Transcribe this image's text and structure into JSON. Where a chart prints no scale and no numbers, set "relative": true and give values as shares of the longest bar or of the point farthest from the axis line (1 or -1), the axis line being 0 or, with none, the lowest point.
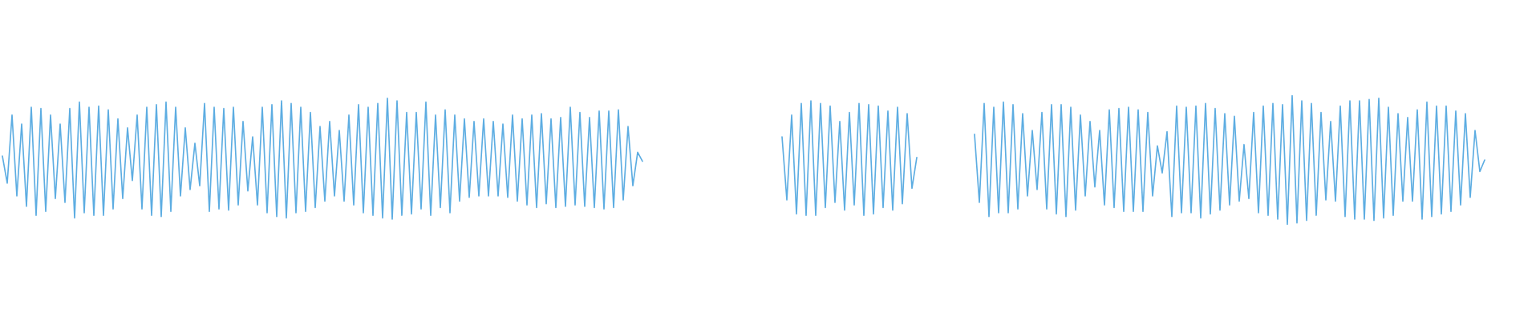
{
  "chart_data": {
    "type": "line",
    "relative": true,
    "categories": [
      null,
      null,
      null,
      null,
      null,
      null,
      null,
      null,
      null,
      null,
      null,
      null,
      null,
      null,
      null,
      null,
      null,
      null,
      null,
      null,
      null,
      null,
      null,
      null,
      null,
      null,
      null,
      null,
      null,
      null,
      null,
      null,
      null,
      null,
      null,
      null,
      null,
      null,
      null,
      null,
      null,
      null,
      null,
      null,
      null,
      null,
      null,
      null,
      null,
      null,
      null,
      null,
      null,
      null,
      null,
      null,
      null,
      null,
      null,
      null,
      null,
      null,
      null,
      null,
      null,
      null,
      null,
      null,
      null,
      null,
      null,
      null,
      null,
      null,
      null,
      null,
      null,
      null,
      null,
      null,
      null,
      null,
      null,
      null,
      null,
      null,
      null,
      null,
      null,
      null,
      null,
      null,
      null,
      null,
      null,
      null,
      null,
      null,
      null,
      null,
      null,
      null,
      null,
      null,
      null,
      null,
      null,
      null,
      null,
      null,
      null,
      null,
      null,
      null,
      null,
      null,
      null,
      null,
      null,
      null,
      null,
      null,
      null,
      null,
      null,
      null,
      null,
      null,
      null,
      null,
      null,
      null,
      null,
      null,
      null,
      null,
      null,
      null,
      null,
      null,
      null,
      null,
      null,
      null,
      null,
      null,
      null,
      null,
      null,
      null,
      null,
      null,
      null,
      null,
      null,
      null,
      null,
      null,
      null,
      null,
      null,
      null,
      null,
      null,
      null,
      null,
      null,
      null,
      null,
      null,
      null,
      null,
      null,
      null,
      null,
      null,
      null,
      null,
      null,
      null,
      null,
      null,
      null,
      null,
      null,
      null,
      null,
      null,
      null,
      null,
      null,
      null,
      null,
      null,
      null,
      null,
      null,
      null,
      null,
      null,
      null,
      null,
      null,
      null,
      null,
      null,
      null,
      null,
      null,
      null,
      null,
      null,
      null,
      null,
      null,
      null,
      null,
      null,
      null,
      null,
      null,
      null,
      null,
      null,
      null,
      null,
      null,
      null,
      null,
      null,
      null,
      null,
      null,
      null,
      null,
      null,
      null,
      null,
      null,
      null,
      null,
      null,
      null,
      null,
      null,
      null,
      null,
      null,
      null,
      null,
      null,
      null,
      null,
      null,
      null,
      null,
      null,
      null,
      null,
      null,
      null,
      null,
      null,
      null,
      null,
      null,
      null,
      null,
      null,
      null,
      null,
      null,
      null,
      null,
      null,
      null,
      null,
      null,
      null,
      null,
      null,
      null,
      null,
      null,
      null,
      null,
      null,
      null,
      null,
      null,
      null,
      null,
      null,
      null,
      null,
      null,
      null,
      null,
      null,
      null,
      null,
      null,
      null,
      null,
      null,
      null,
      null,
      null,
      null
    ],
    "series": [
      {
        "color": "#5dade2",
        "values": [
          0.53,
          0.32,
          0.85,
          0.22,
          0.78,
          0.14,
          0.91,
          0.07,
          0.9,
          0.1,
          0.85,
          0.2,
          0.78,
          0.17,
          0.9,
          0.05,
          0.95,
          0.09,
          0.91,
          0.07,
          0.92,
          0.07,
          0.89,
          0.12,
          0.82,
          0.2,
          0.75,
          0.34,
          0.85,
          0.12,
          0.91,
          0.07,
          0.93,
          0.06,
          0.95,
          0.1,
          0.91,
          0.22,
          0.75,
          0.27,
          0.63,
          0.3,
          0.94,
          0.1,
          0.91,
          0.12,
          0.9,
          0.11,
          0.91,
          0.15,
          0.8,
          0.26,
          0.68,
          0.15,
          0.91,
          0.09,
          0.93,
          0.06,
          0.96,
          0.05,
          0.94,
          0.09,
          0.91,
          0.1,
          0.87,
          0.13,
          0.76,
          0.18,
          0.8,
          0.22,
          0.73,
          0.18,
          0.85,
          0.15,
          0.93,
          0.09,
          0.91,
          0.07,
          0.94,
          0.05,
          0.98,
          0.04,
          0.96,
          0.07,
          0.87,
          0.08,
          0.87,
          0.12,
          0.95,
          0.07,
          0.85,
          0.13,
          0.89,
          0.09,
          0.85,
          0.18,
          0.82,
          0.21,
          0.8,
          0.22,
          0.82,
          0.22,
          0.8,
          0.22,
          0.78,
          0.21,
          0.85,
          0.18,
          0.82,
          0.15,
          0.85,
          0.13,
          0.86,
          0.16,
          0.82,
          0.13,
          0.83,
          0.14,
          0.91,
          0.15,
          0.87,
          0.14,
          0.83,
          0.13,
          0.88,
          0.12,
          0.88,
          0.13,
          0.89,
          0.19,
          0.76,
          0.3,
          0.56,
          0.49,
          null,
          null,
          null,
          null,
          null,
          null,
          null,
          null,
          null,
          null,
          null,
          null,
          null,
          null,
          null,
          null,
          null,
          null,
          null,
          null,
          null,
          null,
          null,
          null,
          null,
          null,
          null,
          null,
          null,
          null,
          null,
          null,
          null,
          null,
          null,
          null,
          null,
          null,
          null,
          null,
          null,
          null,
          null,
          null,
          null,
          null,
          null,
          null,
          null,
          null,
          null,
          null,
          null,
          null,
          null,
          null,
          null,
          null,
          null,
          null,
          null,
          null,
          null,
          null,
          null,
          null,
          null,
          null,
          null,
          null,
          null,
          null,
          null,
          null,
          null,
          null,
          null,
          null,
          null,
          null,
          null,
          null,
          null,
          null,
          null,
          null,
          null,
          null,
          null,
          null,
          null,
          null,
          null,
          null,
          null,
          null,
          null,
          null,
          null,
          null,
          null,
          null,
          null,
          null,
          null,
          null,
          null,
          null,
          null,
          null,
          null,
          null,
          null,
          null,
          null,
          null,
          null,
          null,
          null,
          null,
          null,
          null,
          null,
          null,
          null,
          null,
          null,
          null,
          null,
          null,
          null,
          null,
          null,
          null,
          null,
          null,
          null,
          null,
          null,
          null,
          null,
          null,
          null,
          null,
          null,
          null,
          null,
          null,
          null,
          null,
          null,
          null,
          null,
          null,
          null,
          null,
          null,
          null,
          null,
          null,
          null,
          null,
          null,
          null,
          null,
          null,
          null,
          null,
          null,
          null,
          null,
          null,
          null,
          null,
          null
        ]
      },
      {
        "color": "#5dade2",
        "values": [
          null,
          null,
          null,
          null,
          null,
          null,
          null,
          null,
          null,
          null,
          null,
          null,
          null,
          null,
          null,
          null,
          null,
          null,
          null,
          null,
          null,
          null,
          null,
          null,
          null,
          null,
          null,
          null,
          null,
          null,
          null,
          null,
          null,
          null,
          null,
          null,
          null,
          null,
          null,
          null,
          null,
          null,
          null,
          null,
          null,
          null,
          null,
          null,
          null,
          null,
          null,
          null,
          null,
          null,
          null,
          null,
          null,
          null,
          null,
          null,
          null,
          null,
          null,
          null,
          null,
          null,
          null,
          null,
          null,
          null,
          null,
          null,
          null,
          null,
          null,
          null,
          null,
          null,
          null,
          null,
          null,
          null,
          null,
          null,
          null,
          null,
          null,
          null,
          null,
          null,
          null,
          null,
          null,
          null,
          null,
          null,
          null,
          null,
          null,
          null,
          null,
          null,
          null,
          null,
          null,
          null,
          null,
          null,
          null,
          null,
          null,
          null,
          null,
          null,
          null,
          null,
          null,
          null,
          null,
          null,
          null,
          null,
          null,
          null,
          null,
          null,
          null,
          null,
          null,
          null,
          null,
          null,
          null,
          null,
          null,
          null,
          null,
          null,
          null,
          null,
          null,
          null,
          null,
          null,
          null,
          null,
          null,
          null,
          null,
          null,
          null,
          null,
          null,
          null,
          null,
          null,
          null,
          null,
          null,
          null,
          null,
          null,
          0.68,
          0.19,
          0.85,
          0.08,
          0.94,
          0.07,
          0.96,
          0.07,
          0.94,
          0.13,
          0.92,
          0.17,
          0.8,
          0.11,
          0.87,
          0.15,
          0.94,
          0.07,
          0.93,
          0.08,
          0.92,
          0.13,
          0.88,
          0.11,
          0.91,
          0.16,
          0.86,
          0.28,
          0.52,
          null,
          null,
          null,
          null,
          null,
          null,
          null,
          null,
          null,
          null,
          null,
          null,
          null,
          null,
          null,
          null,
          null,
          null,
          null,
          null,
          null,
          null,
          null,
          null,
          null,
          null,
          null,
          null,
          null,
          null,
          null,
          null,
          null,
          null,
          null,
          null,
          null,
          null,
          null,
          null,
          null,
          null,
          null,
          null,
          null,
          null,
          null,
          null,
          null,
          null,
          null,
          null,
          null,
          null,
          null,
          null,
          null,
          null,
          null,
          null,
          null,
          null,
          null,
          null,
          null,
          null,
          null,
          null,
          null,
          null,
          null,
          null,
          null,
          null,
          null,
          null,
          null,
          null,
          null,
          null,
          null,
          null,
          null,
          null,
          null,
          null,
          null,
          null,
          null,
          null,
          null,
          null,
          null,
          null,
          null,
          null,
          null,
          null,
          null,
          null,
          null,
          null,
          null,
          null,
          null,
          null,
          null,
          null,
          null,
          null,
          null,
          null,
          null,
          null,
          null,
          null,
          null,
          null
        ]
      },
      {
        "color": "#5dade2",
        "values": [
          null,
          null,
          null,
          null,
          null,
          null,
          null,
          null,
          null,
          null,
          null,
          null,
          null,
          null,
          null,
          null,
          null,
          null,
          null,
          null,
          null,
          null,
          null,
          null,
          null,
          null,
          null,
          null,
          null,
          null,
          null,
          null,
          null,
          null,
          null,
          null,
          null,
          null,
          null,
          null,
          null,
          null,
          null,
          null,
          null,
          null,
          null,
          null,
          null,
          null,
          null,
          null,
          null,
          null,
          null,
          null,
          null,
          null,
          null,
          null,
          null,
          null,
          null,
          null,
          null,
          null,
          null,
          null,
          null,
          null,
          null,
          null,
          null,
          null,
          null,
          null,
          null,
          null,
          null,
          null,
          null,
          null,
          null,
          null,
          null,
          null,
          null,
          null,
          null,
          null,
          null,
          null,
          null,
          null,
          null,
          null,
          null,
          null,
          null,
          null,
          null,
          null,
          null,
          null,
          null,
          null,
          null,
          null,
          null,
          null,
          null,
          null,
          null,
          null,
          null,
          null,
          null,
          null,
          null,
          null,
          null,
          null,
          null,
          null,
          null,
          null,
          null,
          null,
          null,
          null,
          null,
          null,
          null,
          null,
          null,
          null,
          null,
          null,
          null,
          null,
          null,
          null,
          null,
          null,
          null,
          null,
          null,
          null,
          null,
          null,
          null,
          null,
          null,
          null,
          null,
          null,
          null,
          null,
          null,
          null,
          null,
          null,
          null,
          null,
          null,
          null,
          null,
          null,
          null,
          null,
          null,
          null,
          null,
          null,
          null,
          null,
          null,
          null,
          null,
          null,
          null,
          null,
          null,
          null,
          null,
          null,
          null,
          null,
          null,
          null,
          null,
          null,
          null,
          null,
          null,
          null,
          null,
          null,
          null,
          null,
          null,
          null,
          0.7,
          0.17,
          0.94,
          0.06,
          0.91,
          0.09,
          0.95,
          0.09,
          0.93,
          0.12,
          0.86,
          0.22,
          0.73,
          0.27,
          0.87,
          0.12,
          0.93,
          0.08,
          0.93,
          0.06,
          0.91,
          0.11,
          0.85,
          0.22,
          0.8,
          0.29,
          0.73,
          0.15,
          0.89,
          0.13,
          0.9,
          0.1,
          0.91,
          0.1,
          0.89,
          0.1,
          0.87,
          0.22,
          0.61,
          0.4,
          0.72,
          0.06,
          0.92,
          0.09,
          0.91,
          0.09,
          0.92,
          0.05,
          0.94,
          0.08,
          0.9,
          0.11,
          0.86,
          0.15,
          0.84,
          0.18,
          0.62,
          0.2,
          0.87,
          0.09,
          0.92,
          0.07,
          0.94,
          0.04,
          0.93,
          0.0,
          1.0,
          0.01,
          0.96,
          0.03,
          0.94,
          0.07,
          0.87,
          0.19,
          0.8,
          0.18,
          0.92,
          0.06,
          0.96,
          0.04,
          0.96,
          0.04,
          0.97,
          0.03,
          0.98,
          0.05,
          0.91,
          0.07,
          0.86,
          0.18,
          0.83,
          0.18,
          0.89,
          0.04,
          0.95,
          0.06,
          0.92,
          0.08,
          0.92,
          0.1,
          0.88,
          0.15,
          0.86,
          0.21,
          0.73,
          0.41,
          0.5
        ]
      }
    ]
  }
}
